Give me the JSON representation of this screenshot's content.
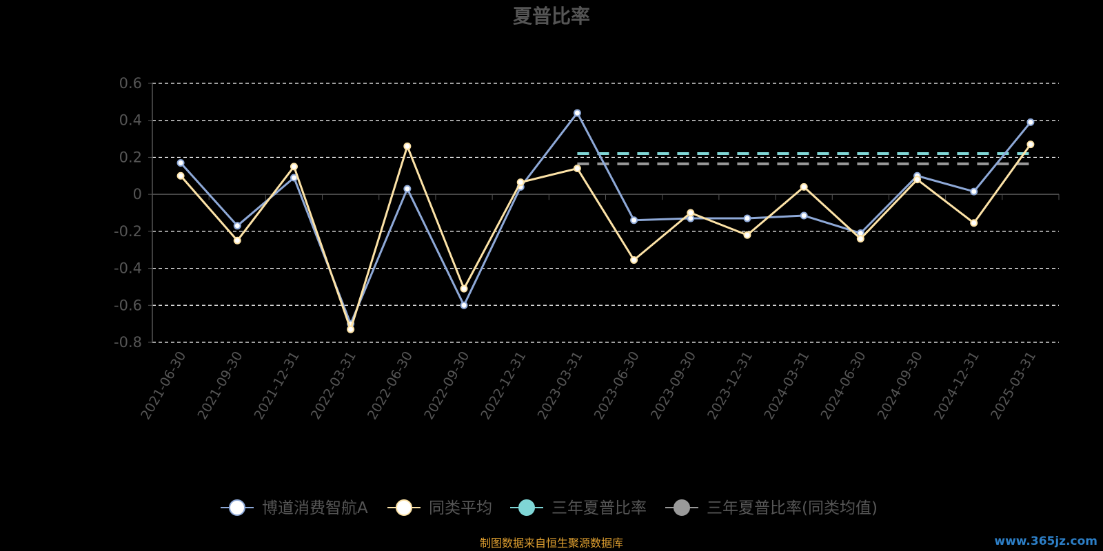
{
  "chart_data": {
    "type": "line",
    "title": "夏普比率",
    "categories": [
      "2021-06-30",
      "2021-09-30",
      "2021-12-31",
      "2022-03-31",
      "2022-06-30",
      "2022-09-30",
      "2022-12-31",
      "2023-03-31",
      "2023-06-30",
      "2023-09-30",
      "2023-12-31",
      "2024-03-31",
      "2024-06-30",
      "2024-09-30",
      "2024-12-31",
      "2025-03-31"
    ],
    "ylim": [
      -0.8,
      0.6
    ],
    "yticks": [
      "0.6",
      "0.4",
      "0.2",
      "0",
      "-0.2",
      "-0.4",
      "-0.6",
      "-0.8"
    ],
    "ytick_values": [
      0.6,
      0.4,
      0.2,
      0,
      -0.2,
      -0.4,
      -0.6,
      -0.8
    ],
    "grid": true,
    "legend_position": "bottom",
    "series": [
      {
        "name": "博道消费智航A",
        "color": "#8ea9d8",
        "values": [
          0.17,
          -0.17,
          0.09,
          -0.7,
          0.03,
          -0.6,
          0.04,
          0.44,
          -0.14,
          -0.13,
          -0.13,
          -0.115,
          -0.21,
          0.1,
          0.015,
          0.39
        ]
      },
      {
        "name": "同类平均",
        "color": "#fde3a7",
        "values": [
          0.1,
          -0.25,
          0.15,
          -0.73,
          0.26,
          -0.51,
          0.065,
          0.14,
          -0.355,
          -0.1,
          -0.22,
          0.04,
          -0.24,
          0.08,
          -0.155,
          0.27
        ]
      },
      {
        "name": "三年夏普比率",
        "color": "#7fd6d6",
        "style": "dashed",
        "from_category": "2023-03-31",
        "to_category": "2025-03-31",
        "value": 0.22
      },
      {
        "name": "三年夏普比率(同类均值)",
        "color": "#999999",
        "style": "dashed",
        "from_category": "2023-03-31",
        "to_category": "2025-03-31",
        "value": 0.165
      }
    ]
  },
  "legend_markers": {
    "marker_fill": [
      "#ffffff",
      "#ffffff",
      "#7fd6d6",
      "#999999"
    ]
  },
  "footer": {
    "source": "制图数据来自恒生聚源数据库",
    "watermark": "www.365jz.com"
  },
  "colors": {
    "background": "#000000",
    "grid": "#ffffff",
    "axis": "#555555"
  }
}
